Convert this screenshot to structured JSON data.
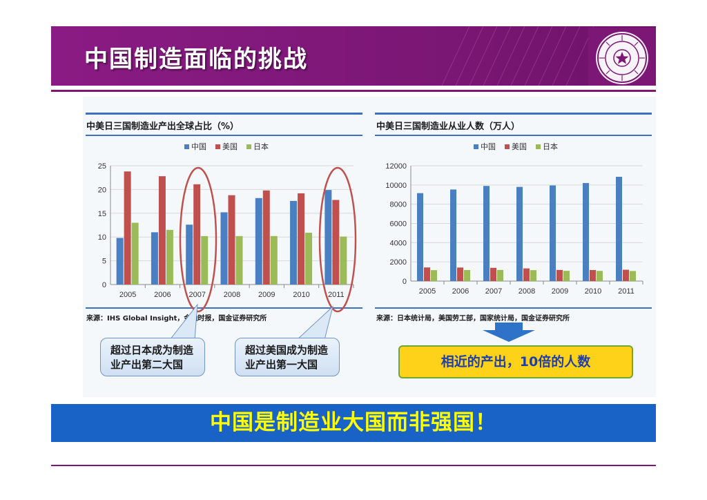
{
  "slide": {
    "title": "中国制造面临的挑战",
    "conclusion": "中国是制造业大国而非强国！"
  },
  "left_chart": {
    "title": "中美日三国制造业产出全球占比（%）",
    "source": "来源：IHS Global Insight，金融时报，国金证券研究所",
    "callout_1": [
      "超过日本成为制造",
      "业产出第二大国"
    ],
    "callout_2": [
      "超过美国成为制造",
      "业产出第一大国"
    ]
  },
  "right_chart": {
    "title": "中美日三国制造业从业人数（万人）",
    "source": "来源：日本统计局，美国劳工部，国家统计局，国金证券研究所",
    "highlight": "相近的产出，10倍的人数"
  },
  "colors": {
    "china": "#4a7fc1",
    "usa": "#c0504d",
    "japan": "#9bbb59",
    "purple": "#7c1776",
    "blue": "#1a63c6"
  },
  "chart_data": [
    {
      "type": "bar",
      "title": "中美日三国制造业产出全球占比（%）",
      "categories": [
        "2005",
        "2006",
        "2007",
        "2008",
        "2009",
        "2010",
        "2011"
      ],
      "series": [
        {
          "name": "中国",
          "values": [
            9.8,
            11.0,
            12.6,
            15.2,
            18.2,
            17.6,
            19.9
          ]
        },
        {
          "name": "美国",
          "values": [
            23.8,
            22.8,
            21.1,
            18.8,
            19.8,
            19.2,
            17.8
          ]
        },
        {
          "name": "日本",
          "values": [
            13.0,
            11.5,
            10.2,
            10.2,
            10.2,
            10.9,
            10.1
          ]
        }
      ],
      "ylim": [
        0,
        25
      ],
      "yticks": [
        0,
        5,
        10,
        15,
        20,
        25
      ],
      "grid": true,
      "legend": "top-center"
    },
    {
      "type": "bar",
      "title": "中美日三国制造业从业人数（万人）",
      "categories": [
        "2005",
        "2006",
        "2007",
        "2008",
        "2009",
        "2010",
        "2011"
      ],
      "series": [
        {
          "name": "中国",
          "values": [
            9150,
            9530,
            9900,
            9800,
            9950,
            10200,
            10850
          ]
        },
        {
          "name": "美国",
          "values": [
            1420,
            1410,
            1380,
            1320,
            1160,
            1150,
            1180
          ]
        },
        {
          "name": "日本",
          "values": [
            1140,
            1150,
            1160,
            1140,
            1070,
            1060,
            1050
          ]
        }
      ],
      "ylim": [
        0,
        12000
      ],
      "yticks": [
        0,
        2000,
        4000,
        6000,
        8000,
        10000,
        12000
      ],
      "grid": true,
      "legend": "top-center"
    }
  ]
}
